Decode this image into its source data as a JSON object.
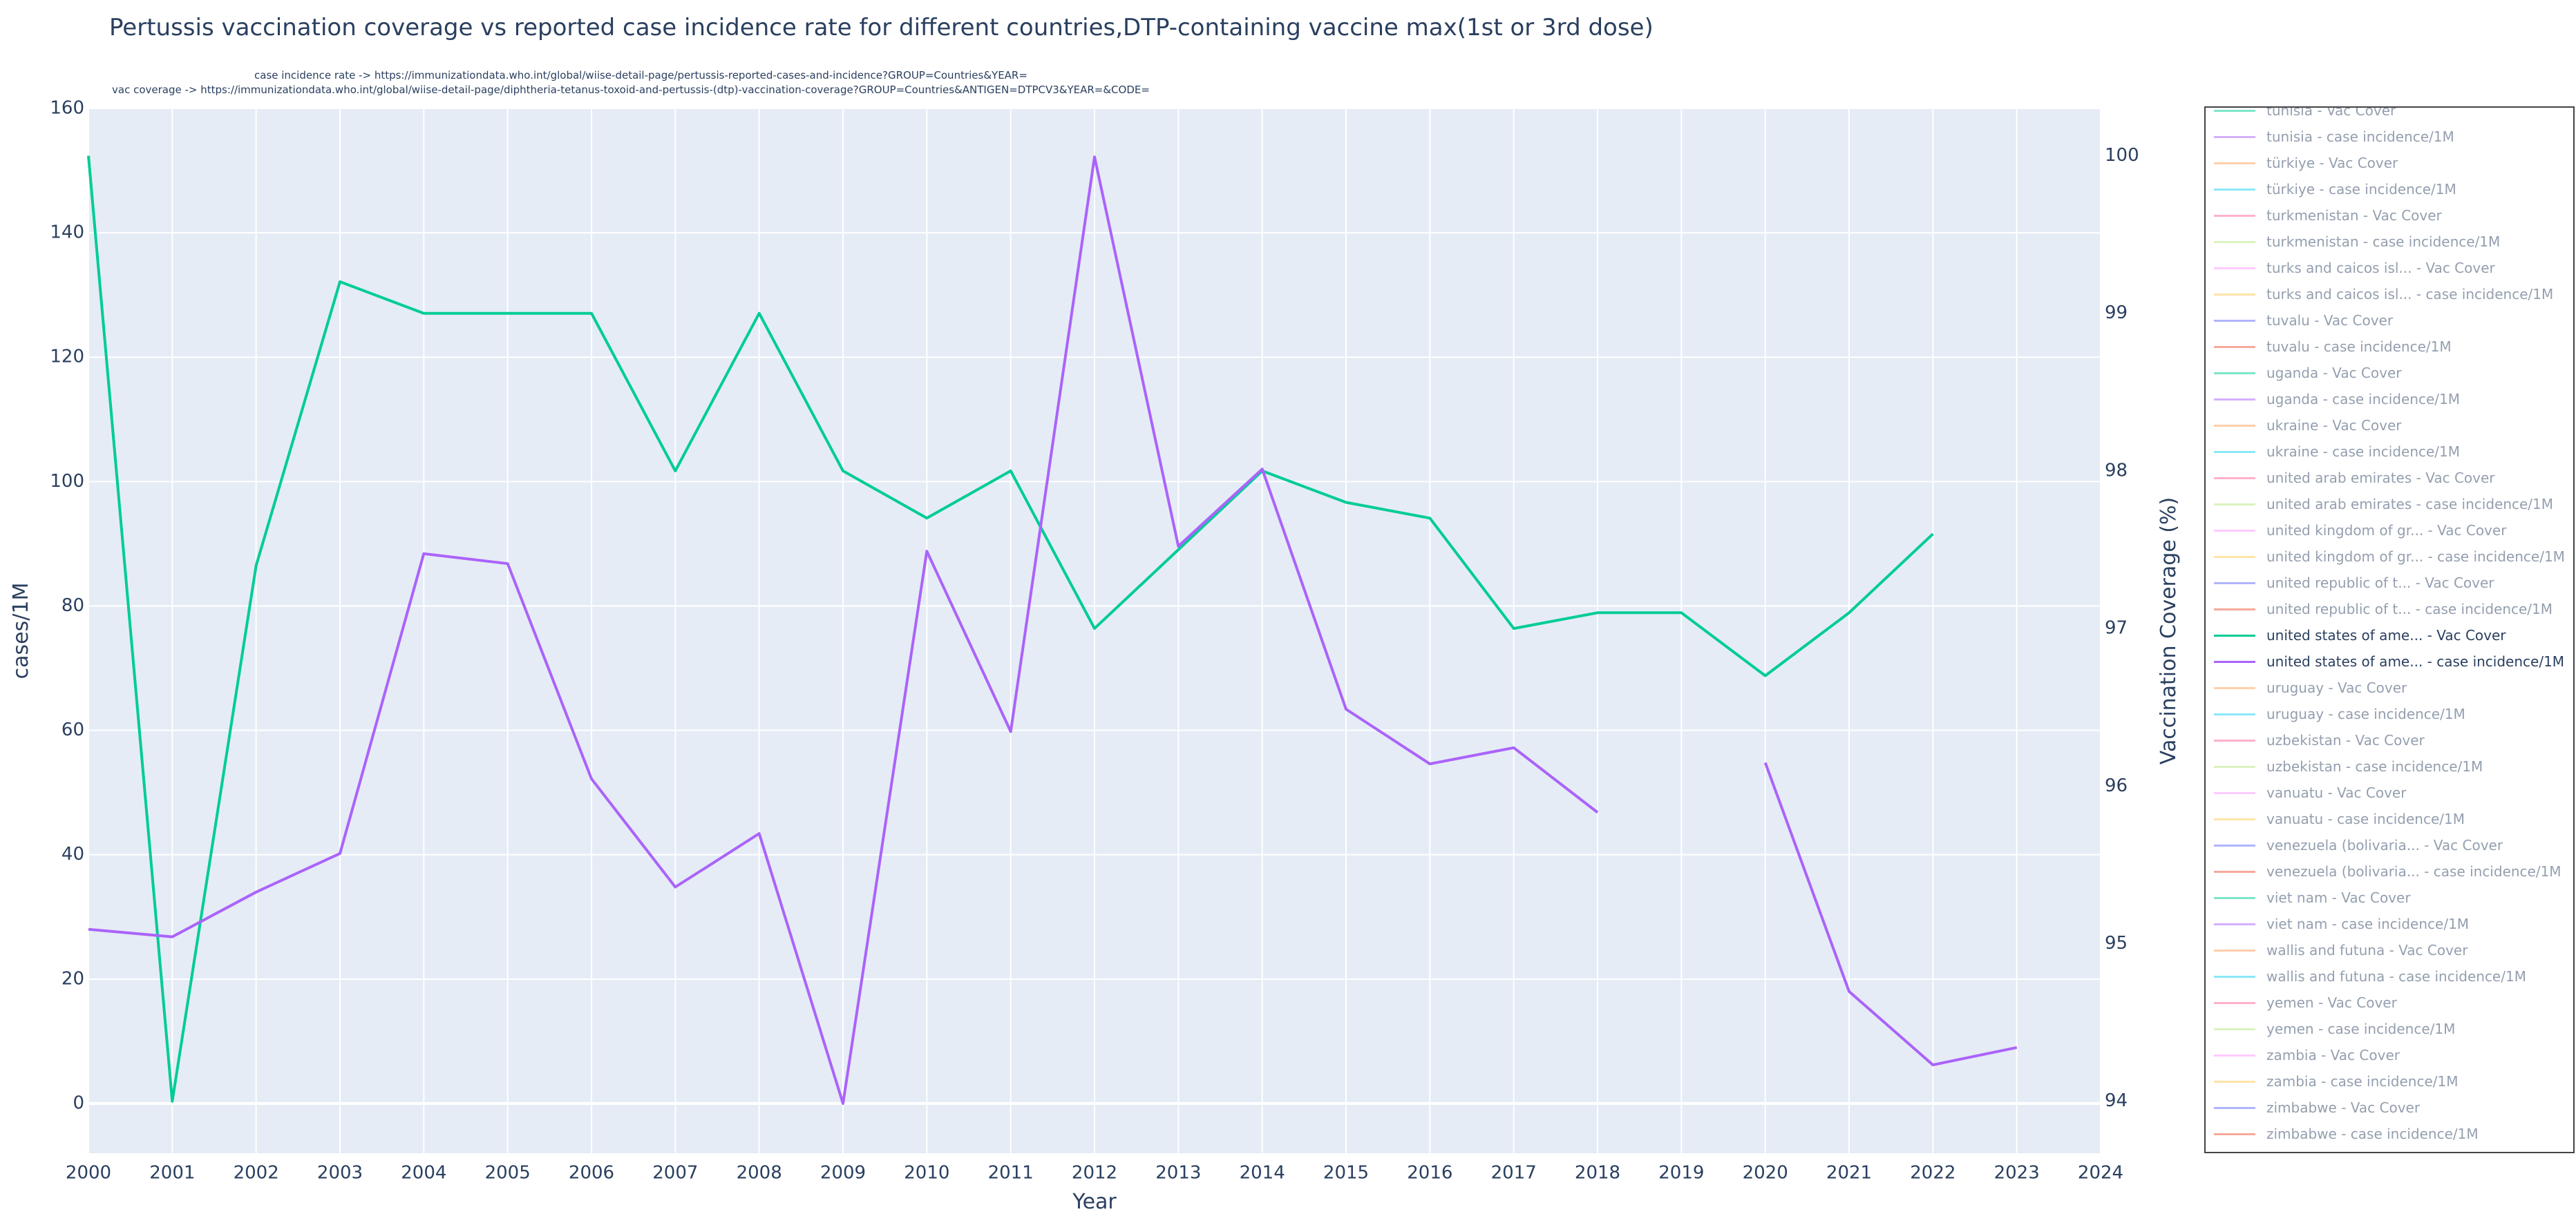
{
  "chart_data": {
    "type": "line",
    "title": "Pertussis vaccination coverage vs reported case incidence rate for different countries,DTP-containing vaccine max(1st or 3rd dose)",
    "sources": [
      "case incidence rate -> https://immunizationdata.who.int/global/wiise-detail-page/pertussis-reported-cases-and-incidence?GROUP=Countries&YEAR=",
      "vac coverage -> https://immunizationdata.who.int/global/wiise-detail-page/diphtheria-tetanus-toxoid-and-pertussis-(dtp)-vaccination-coverage?GROUP=Countries&ANTIGEN=DTPCV3&YEAR=&CODE="
    ],
    "xlabel": "Year",
    "ylabel": "cases/1M",
    "y2label": "Vaccination Coverage (%)",
    "xlim": [
      2000,
      2024
    ],
    "ylim": [
      -8,
      160
    ],
    "y2lim": [
      93.67,
      100.3
    ],
    "xticks": [
      2000,
      2001,
      2002,
      2003,
      2004,
      2005,
      2006,
      2007,
      2008,
      2009,
      2010,
      2011,
      2012,
      2013,
      2014,
      2015,
      2016,
      2017,
      2018,
      2019,
      2020,
      2021,
      2022,
      2023,
      2024
    ],
    "yticks": [
      0,
      20,
      40,
      60,
      80,
      100,
      120,
      140,
      160
    ],
    "y2ticks": [
      94,
      95,
      96,
      97,
      98,
      99,
      100
    ],
    "grid": true,
    "legend_position": "right",
    "colors": {
      "vac": "#00cc96",
      "incidence": "#ab63fa",
      "plot_bg": "#e5ecf6"
    },
    "series": [
      {
        "name": "united states of ame... - Vac Cover",
        "axis": "y2",
        "color": "#00cc96",
        "x": [
          2000,
          2001,
          2002,
          2003,
          2004,
          2005,
          2006,
          2007,
          2008,
          2009,
          2010,
          2011,
          2012,
          2013,
          2014,
          2015,
          2016,
          2017,
          2018,
          2019,
          2020,
          2021,
          2022
        ],
        "values": [
          100,
          94,
          97.4,
          99.2,
          99,
          99,
          99,
          98,
          99,
          98,
          97.7,
          98,
          97,
          97.5,
          98,
          97.8,
          97.7,
          97,
          97.1,
          97.1,
          96.7,
          97.1,
          97.6
        ]
      },
      {
        "name": "united states of ame... - case incidence/1M",
        "axis": "y",
        "color": "#ab63fa",
        "x": [
          2000,
          2001,
          2002,
          2003,
          2004,
          2005,
          2006,
          2007,
          2008,
          2009,
          2010,
          2011,
          2012,
          2013,
          2014,
          2015,
          2016,
          2017,
          2018,
          2019,
          2020,
          2021,
          2022,
          2023
        ],
        "values": [
          28,
          26.8,
          34,
          40.2,
          88.4,
          86.8,
          52.2,
          34.8,
          43.4,
          0,
          88.8,
          59.8,
          152.2,
          89.6,
          102,
          63.4,
          54.6,
          57.2,
          46.8,
          null,
          54.8,
          18,
          6.2,
          9
        ]
      }
    ]
  },
  "legend": {
    "items": [
      {
        "label": "tunisia - Vac Cover",
        "color": "#00cc96",
        "active": false
      },
      {
        "label": "tunisia - case incidence/1M",
        "color": "#ab63fa",
        "active": false
      },
      {
        "label": "türkiye - Vac Cover",
        "color": "#ffa15a",
        "active": false
      },
      {
        "label": "türkiye - case incidence/1M",
        "color": "#19d3f3",
        "active": false
      },
      {
        "label": "turkmenistan - Vac Cover",
        "color": "#ff6692",
        "active": false
      },
      {
        "label": "turkmenistan - case incidence/1M",
        "color": "#b6e880",
        "active": false
      },
      {
        "label": "turks and caicos isl... - Vac Cover",
        "color": "#ff97ff",
        "active": false
      },
      {
        "label": "turks and caicos isl... - case incidence/1M",
        "color": "#fecb52",
        "active": false
      },
      {
        "label": "tuvalu - Vac Cover",
        "color": "#636efa",
        "active": false
      },
      {
        "label": "tuvalu - case incidence/1M",
        "color": "#ef553b",
        "active": false
      },
      {
        "label": "uganda - Vac Cover",
        "color": "#00cc96",
        "active": false
      },
      {
        "label": "uganda - case incidence/1M",
        "color": "#ab63fa",
        "active": false
      },
      {
        "label": "ukraine - Vac Cover",
        "color": "#ffa15a",
        "active": false
      },
      {
        "label": "ukraine - case incidence/1M",
        "color": "#19d3f3",
        "active": false
      },
      {
        "label": "united arab emirates - Vac Cover",
        "color": "#ff6692",
        "active": false
      },
      {
        "label": "united arab emirates - case incidence/1M",
        "color": "#b6e880",
        "active": false
      },
      {
        "label": "united kingdom of gr... - Vac Cover",
        "color": "#ff97ff",
        "active": false
      },
      {
        "label": "united kingdom of gr... - case incidence/1M",
        "color": "#fecb52",
        "active": false
      },
      {
        "label": "united republic of t... - Vac Cover",
        "color": "#636efa",
        "active": false
      },
      {
        "label": "united republic of t... - case incidence/1M",
        "color": "#ef553b",
        "active": false
      },
      {
        "label": "united states of ame... - Vac Cover",
        "color": "#00cc96",
        "active": true
      },
      {
        "label": "united states of ame... - case incidence/1M",
        "color": "#ab63fa",
        "active": true
      },
      {
        "label": "uruguay - Vac Cover",
        "color": "#ffa15a",
        "active": false
      },
      {
        "label": "uruguay - case incidence/1M",
        "color": "#19d3f3",
        "active": false
      },
      {
        "label": "uzbekistan - Vac Cover",
        "color": "#ff6692",
        "active": false
      },
      {
        "label": "uzbekistan - case incidence/1M",
        "color": "#b6e880",
        "active": false
      },
      {
        "label": "vanuatu - Vac Cover",
        "color": "#ff97ff",
        "active": false
      },
      {
        "label": "vanuatu - case incidence/1M",
        "color": "#fecb52",
        "active": false
      },
      {
        "label": "venezuela (bolivaria... - Vac Cover",
        "color": "#636efa",
        "active": false
      },
      {
        "label": "venezuela (bolivaria... - case incidence/1M",
        "color": "#ef553b",
        "active": false
      },
      {
        "label": "viet nam - Vac Cover",
        "color": "#00cc96",
        "active": false
      },
      {
        "label": "viet nam - case incidence/1M",
        "color": "#ab63fa",
        "active": false
      },
      {
        "label": "wallis and futuna - Vac Cover",
        "color": "#ffa15a",
        "active": false
      },
      {
        "label": "wallis and futuna - case incidence/1M",
        "color": "#19d3f3",
        "active": false
      },
      {
        "label": "yemen - Vac Cover",
        "color": "#ff6692",
        "active": false
      },
      {
        "label": "yemen - case incidence/1M",
        "color": "#b6e880",
        "active": false
      },
      {
        "label": "zambia - Vac Cover",
        "color": "#ff97ff",
        "active": false
      },
      {
        "label": "zambia - case incidence/1M",
        "color": "#fecb52",
        "active": false
      },
      {
        "label": "zimbabwe - Vac Cover",
        "color": "#636efa",
        "active": false
      },
      {
        "label": "zimbabwe - case incidence/1M",
        "color": "#ef553b",
        "active": false
      }
    ]
  }
}
